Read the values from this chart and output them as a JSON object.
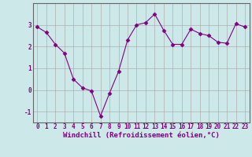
{
  "x": [
    0,
    1,
    2,
    3,
    4,
    5,
    6,
    7,
    8,
    9,
    10,
    11,
    12,
    13,
    14,
    15,
    16,
    17,
    18,
    19,
    20,
    21,
    22,
    23
  ],
  "y": [
    2.9,
    2.65,
    2.1,
    1.7,
    0.5,
    0.1,
    -0.05,
    -1.2,
    -0.15,
    0.85,
    2.3,
    3.0,
    3.1,
    3.5,
    2.75,
    2.1,
    2.1,
    2.8,
    2.6,
    2.5,
    2.2,
    2.15,
    3.05,
    2.9
  ],
  "line_color": "#800080",
  "marker": "D",
  "marker_size": 2.5,
  "bg_color": "#cce8e8",
  "grid_color": "#aaaaaa",
  "xlabel": "Windchill (Refroidissement éolien,°C)",
  "xlim": [
    -0.5,
    23.5
  ],
  "ylim": [
    -1.5,
    4.0
  ],
  "yticks": [
    -1,
    0,
    1,
    2,
    3
  ],
  "xticks": [
    0,
    1,
    2,
    3,
    4,
    5,
    6,
    7,
    8,
    9,
    10,
    11,
    12,
    13,
    14,
    15,
    16,
    17,
    18,
    19,
    20,
    21,
    22,
    23
  ],
  "font_color": "#800080",
  "label_fontsize": 6.5,
  "tick_fontsize": 5.5,
  "spine_color": "#666666"
}
